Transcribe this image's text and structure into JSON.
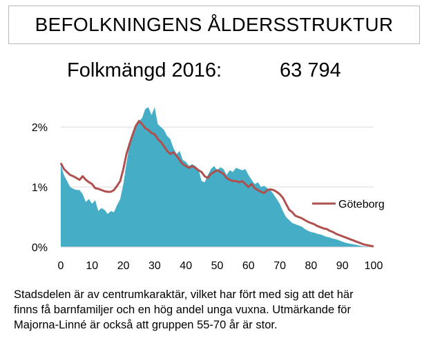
{
  "header": {
    "title": "BEFOLKNINGENS ÅLDERSSTRUKTUR"
  },
  "population": {
    "label": "Folkmängd 2016:",
    "value": "63 794"
  },
  "chart_data": {
    "type": "area",
    "title": "",
    "xlabel": "",
    "ylabel": "",
    "xlim": [
      0,
      100
    ],
    "ylim": [
      0,
      2.3
    ],
    "x_ticks": [
      "0",
      "10",
      "20",
      "30",
      "40",
      "50",
      "60",
      "70",
      "80",
      "90",
      "100"
    ],
    "y_ticks": [
      {
        "value": 0,
        "label": "0%"
      },
      {
        "value": 1,
        "label": "1%"
      },
      {
        "value": 2,
        "label": "2%"
      }
    ],
    "grid": "horizontal",
    "legend": "right",
    "area_color": "#45aec6",
    "line_color": "#b0504e",
    "x": [
      0,
      1,
      2,
      3,
      4,
      5,
      6,
      7,
      8,
      9,
      10,
      11,
      12,
      13,
      14,
      15,
      16,
      17,
      18,
      19,
      20,
      21,
      22,
      23,
      24,
      25,
      26,
      27,
      28,
      29,
      30,
      31,
      32,
      33,
      34,
      35,
      36,
      37,
      38,
      39,
      40,
      41,
      42,
      43,
      44,
      45,
      46,
      47,
      48,
      49,
      50,
      51,
      52,
      53,
      54,
      55,
      56,
      57,
      58,
      59,
      60,
      61,
      62,
      63,
      64,
      65,
      66,
      67,
      68,
      69,
      70,
      71,
      72,
      73,
      74,
      75,
      76,
      77,
      78,
      79,
      80,
      81,
      82,
      83,
      84,
      85,
      86,
      87,
      88,
      89,
      90,
      91,
      92,
      93,
      94,
      95,
      96,
      97,
      98,
      99,
      100
    ],
    "series": [
      {
        "values": [
          1.37,
          1.2,
          1.1,
          1.0,
          0.97,
          0.95,
          0.95,
          0.88,
          0.75,
          0.8,
          0.72,
          0.78,
          0.6,
          0.65,
          0.62,
          0.55,
          0.6,
          0.58,
          0.7,
          0.8,
          1.05,
          1.4,
          1.7,
          1.9,
          2.0,
          2.1,
          2.15,
          2.3,
          2.33,
          2.2,
          2.33,
          2.05,
          2.0,
          1.95,
          1.85,
          1.8,
          1.65,
          1.55,
          1.6,
          1.45,
          1.42,
          1.35,
          1.38,
          1.35,
          1.3,
          1.1,
          1.08,
          1.2,
          1.3,
          1.35,
          1.28,
          1.33,
          1.3,
          1.2,
          1.28,
          1.25,
          1.32,
          1.3,
          1.28,
          1.3,
          1.2,
          1.12,
          1.05,
          1.08,
          1.0,
          1.02,
          0.98,
          0.95,
          0.88,
          0.8,
          0.72,
          0.6,
          0.5,
          0.45,
          0.4,
          0.38,
          0.36,
          0.34,
          0.3,
          0.27,
          0.25,
          0.24,
          0.22,
          0.21,
          0.19,
          0.17,
          0.16,
          0.14,
          0.13,
          0.11,
          0.09,
          0.07,
          0.06,
          0.05,
          0.04,
          0.03,
          0.02,
          0.01,
          0.01,
          0.0,
          0.0
        ]
      },
      {
        "name": "Göteborg",
        "values": [
          1.4,
          1.3,
          1.25,
          1.2,
          1.18,
          1.15,
          1.12,
          1.18,
          1.12,
          1.08,
          1.05,
          0.98,
          0.97,
          0.95,
          0.93,
          0.92,
          0.92,
          0.95,
          1.02,
          1.1,
          1.3,
          1.55,
          1.72,
          1.88,
          2.02,
          2.1,
          2.05,
          1.98,
          1.95,
          1.9,
          1.88,
          1.8,
          1.75,
          1.68,
          1.6,
          1.55,
          1.58,
          1.52,
          1.45,
          1.38,
          1.35,
          1.32,
          1.35,
          1.32,
          1.28,
          1.25,
          1.18,
          1.15,
          1.22,
          1.25,
          1.28,
          1.25,
          1.22,
          1.15,
          1.12,
          1.1,
          1.1,
          1.08,
          1.1,
          1.05,
          1.0,
          1.05,
          0.98,
          0.95,
          0.92,
          0.9,
          0.95,
          0.96,
          0.95,
          0.92,
          0.88,
          0.82,
          0.72,
          0.62,
          0.58,
          0.52,
          0.5,
          0.48,
          0.45,
          0.42,
          0.4,
          0.38,
          0.35,
          0.33,
          0.31,
          0.3,
          0.27,
          0.25,
          0.22,
          0.2,
          0.18,
          0.16,
          0.14,
          0.12,
          0.1,
          0.08,
          0.06,
          0.04,
          0.03,
          0.02,
          0.01
        ]
      }
    ]
  },
  "description": {
    "lines": [
      "Stadsdelen är av centrumkaraktär,  vilket har fört med sig att det här",
      "finns få barnfamiljer och en hög andel unga vuxna. Utmärkande  för",
      "Majorna-Linné är också att  gruppen 55-70 år är stor."
    ]
  }
}
